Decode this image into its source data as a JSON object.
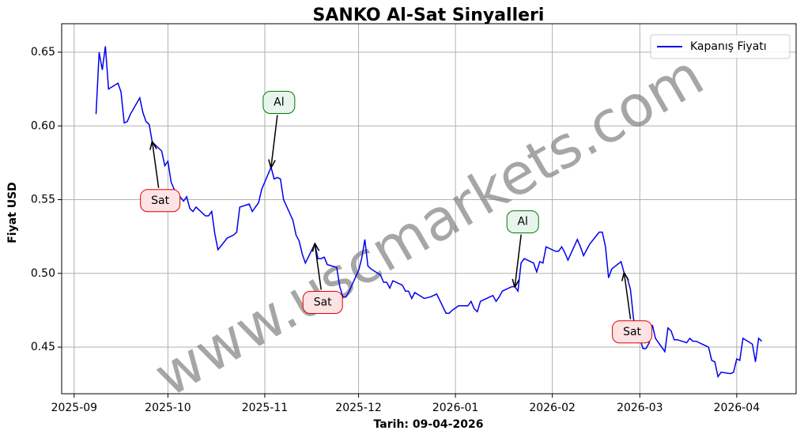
{
  "chart_data": {
    "type": "line",
    "title": "SANKO Al-Sat Sinyalleri",
    "xlabel": "Tarih: 09-04-2026",
    "ylabel": "Fiyat USD",
    "watermark": "www.uscmarkets.com",
    "x": [
      "2025-09-08",
      "2025-09-09",
      "2025-09-10",
      "2025-09-11",
      "2025-09-12",
      "2025-09-15",
      "2025-09-16",
      "2025-09-17",
      "2025-09-18",
      "2025-09-19",
      "2025-09-22",
      "2025-09-23",
      "2025-09-24",
      "2025-09-25",
      "2025-09-26",
      "2025-09-29",
      "2025-09-30",
      "2025-10-01",
      "2025-10-02",
      "2025-10-03",
      "2025-10-06",
      "2025-10-07",
      "2025-10-08",
      "2025-10-09",
      "2025-10-10",
      "2025-10-13",
      "2025-10-14",
      "2025-10-15",
      "2025-10-16",
      "2025-10-17",
      "2025-10-20",
      "2025-10-21",
      "2025-10-22",
      "2025-10-23",
      "2025-10-24",
      "2025-10-27",
      "2025-10-28",
      "2025-10-29",
      "2025-10-30",
      "2025-10-31",
      "2025-11-03",
      "2025-11-04",
      "2025-11-05",
      "2025-11-06",
      "2025-11-07",
      "2025-11-10",
      "2025-11-11",
      "2025-11-12",
      "2025-11-13",
      "2025-11-14",
      "2025-11-17",
      "2025-11-18",
      "2025-11-19",
      "2025-11-20",
      "2025-11-21",
      "2025-11-24",
      "2025-11-25",
      "2025-11-26",
      "2025-11-27",
      "2025-11-28",
      "2025-12-01",
      "2025-12-02",
      "2025-12-03",
      "2025-12-04",
      "2025-12-05",
      "2025-12-08",
      "2025-12-09",
      "2025-12-10",
      "2025-12-11",
      "2025-12-12",
      "2025-12-15",
      "2025-12-16",
      "2025-12-17",
      "2025-12-18",
      "2025-12-19",
      "2025-12-22",
      "2025-12-24",
      "2025-12-26",
      "2025-12-29",
      "2025-12-30",
      "2025-12-31",
      "2026-01-02",
      "2026-01-05",
      "2026-01-06",
      "2026-01-07",
      "2026-01-08",
      "2026-01-09",
      "2026-01-12",
      "2026-01-13",
      "2026-01-14",
      "2026-01-15",
      "2026-01-16",
      "2026-01-19",
      "2026-01-20",
      "2026-01-21",
      "2026-01-22",
      "2026-01-23",
      "2026-01-26",
      "2026-01-27",
      "2026-01-28",
      "2026-01-29",
      "2026-01-30",
      "2026-02-02",
      "2026-02-03",
      "2026-02-04",
      "2026-02-05",
      "2026-02-06",
      "2026-02-09",
      "2026-02-10",
      "2026-02-11",
      "2026-02-12",
      "2026-02-13",
      "2026-02-16",
      "2026-02-17",
      "2026-02-18",
      "2026-02-19",
      "2026-02-20",
      "2026-02-23",
      "2026-02-24",
      "2026-02-25",
      "2026-02-26",
      "2026-02-27",
      "2026-03-02",
      "2026-03-03",
      "2026-03-04",
      "2026-03-05",
      "2026-03-06",
      "2026-03-09",
      "2026-03-10",
      "2026-03-11",
      "2026-03-12",
      "2026-03-13",
      "2026-03-16",
      "2026-03-17",
      "2026-03-18",
      "2026-03-19",
      "2026-03-20",
      "2026-03-23",
      "2026-03-24",
      "2026-03-25",
      "2026-03-26",
      "2026-03-27",
      "2026-03-30",
      "2026-03-31",
      "2026-04-01",
      "2026-04-02",
      "2026-04-03",
      "2026-04-06",
      "2026-04-07",
      "2026-04-08",
      "2026-04-09"
    ],
    "series": [
      {
        "name": "Kapanış Fiyatı",
        "color": "#0000ee",
        "values": [
          0.608,
          0.65,
          0.638,
          0.654,
          0.625,
          0.629,
          0.623,
          0.602,
          0.603,
          0.608,
          0.619,
          0.609,
          0.603,
          0.601,
          0.589,
          0.583,
          0.573,
          0.576,
          0.562,
          0.557,
          0.549,
          0.552,
          0.544,
          0.542,
          0.545,
          0.539,
          0.539,
          0.542,
          0.527,
          0.516,
          0.524,
          0.525,
          0.526,
          0.528,
          0.545,
          0.547,
          0.542,
          0.545,
          0.548,
          0.557,
          0.572,
          0.564,
          0.565,
          0.564,
          0.55,
          0.536,
          0.526,
          0.522,
          0.513,
          0.507,
          0.52,
          0.51,
          0.51,
          0.511,
          0.506,
          0.504,
          0.491,
          0.484,
          0.484,
          0.488,
          0.502,
          0.51,
          0.523,
          0.505,
          0.503,
          0.499,
          0.494,
          0.494,
          0.49,
          0.495,
          0.492,
          0.488,
          0.488,
          0.483,
          0.487,
          0.483,
          0.484,
          0.486,
          0.473,
          0.473,
          0.475,
          0.478,
          0.478,
          0.481,
          0.476,
          0.474,
          0.481,
          0.484,
          0.485,
          0.481,
          0.484,
          0.488,
          0.491,
          0.491,
          0.488,
          0.507,
          0.51,
          0.507,
          0.501,
          0.508,
          0.507,
          0.518,
          0.515,
          0.515,
          0.518,
          0.514,
          0.509,
          0.523,
          0.518,
          0.512,
          0.516,
          0.52,
          0.528,
          0.528,
          0.518,
          0.497,
          0.503,
          0.508,
          0.5,
          0.497,
          0.489,
          0.469,
          0.449,
          0.449,
          0.453,
          0.465,
          0.456,
          0.447,
          0.463,
          0.461,
          0.455,
          0.455,
          0.453,
          0.456,
          0.454,
          0.454,
          0.453,
          0.45,
          0.441,
          0.44,
          0.43,
          0.433,
          0.432,
          0.433,
          0.442,
          0.441,
          0.456,
          0.452,
          0.44,
          0.456,
          0.454
        ]
      }
    ],
    "annotations": [
      {
        "text": "Sat",
        "x": "2025-09-26",
        "y": 0.589,
        "color": "#dd0000"
      },
      {
        "text": "Al",
        "x": "2025-11-03",
        "y": 0.572,
        "color": "#007700"
      },
      {
        "text": "Sat",
        "x": "2025-11-17",
        "y": 0.52,
        "color": "#dd0000"
      },
      {
        "text": "Al",
        "x": "2026-01-20",
        "y": 0.491,
        "color": "#007700"
      },
      {
        "text": "Sat",
        "x": "2026-02-24",
        "y": 0.5,
        "color": "#dd0000"
      }
    ],
    "xlim": [
      "2025-08-28",
      "2026-04-20"
    ],
    "xticks": [
      "2025-09",
      "2025-10",
      "2025-11",
      "2025-12",
      "2026-01",
      "2026-02",
      "2026-03",
      "2026-04"
    ],
    "ylim": [
      0.4184,
      0.6693
    ],
    "yticks": [
      0.45,
      {
        "value": 0.5,
        "label": "0.50"
      },
      0.55,
      {
        "value": 0.6,
        "label": "0.60"
      },
      0.65
    ],
    "grid": true,
    "legend": "upper right"
  }
}
